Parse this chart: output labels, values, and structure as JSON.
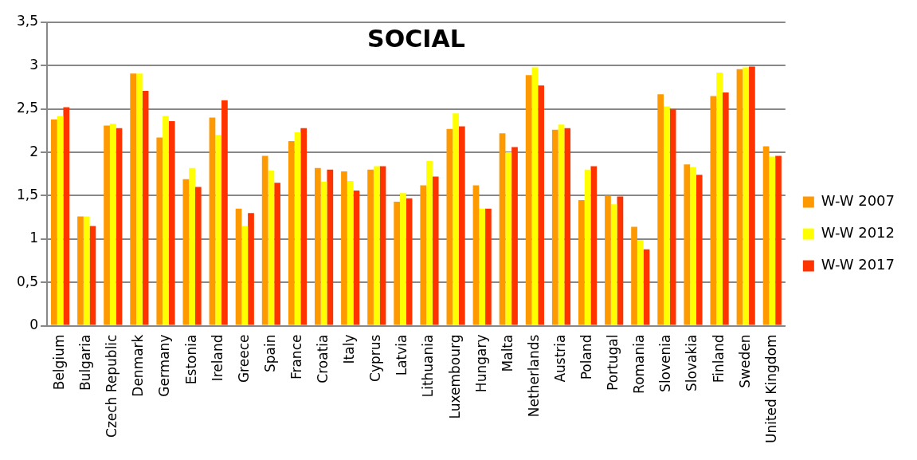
{
  "chart_data": {
    "type": "bar",
    "title": "SOCIAL",
    "categories": [
      "Belgium",
      "Bulgaria",
      "Czech Republic",
      "Denmark",
      "Germany",
      "Estonia",
      "Ireland",
      "Greece",
      "Spain",
      "France",
      "Croatia",
      "Italy",
      "Cyprus",
      "Latvia",
      "Lithuania",
      "Luxembourg",
      "Hungary",
      "Malta",
      "Netherlands",
      "Austria",
      "Poland",
      "Portugal",
      "Romania",
      "Slovenia",
      "Slovakia",
      "Finland",
      "Sweden",
      "United Kingdom"
    ],
    "series": [
      {
        "name": "W-W 2007",
        "color": "#ff9900",
        "values": [
          2.38,
          1.26,
          2.31,
          2.91,
          2.17,
          1.69,
          2.4,
          1.35,
          1.96,
          2.13,
          1.82,
          1.78,
          1.8,
          1.43,
          1.62,
          2.27,
          1.62,
          2.22,
          2.89,
          2.26,
          1.45,
          1.5,
          1.14,
          2.67,
          1.86,
          2.65,
          2.96,
          2.07
        ]
      },
      {
        "name": "W-W 2012",
        "color": "#ffff00",
        "values": [
          2.42,
          1.26,
          2.33,
          2.91,
          2.42,
          1.82,
          2.2,
          1.15,
          1.79,
          2.23,
          1.66,
          1.67,
          1.84,
          1.53,
          1.9,
          2.45,
          1.35,
          2.0,
          2.98,
          2.32,
          1.8,
          1.4,
          0.99,
          2.53,
          1.83,
          2.92,
          2.98,
          1.95
        ]
      },
      {
        "name": "W-W 2017",
        "color": "#ff3300",
        "values": [
          2.52,
          1.15,
          2.28,
          2.71,
          2.36,
          1.6,
          2.6,
          1.3,
          1.65,
          2.28,
          1.8,
          1.56,
          1.84,
          1.47,
          1.72,
          2.3,
          1.35,
          2.06,
          2.77,
          2.28,
          1.84,
          1.49,
          0.88,
          2.5,
          1.74,
          2.69,
          2.99,
          1.96
        ]
      }
    ],
    "ylim": [
      0,
      3.5
    ],
    "yticks": [
      0,
      {
        "value": 0.5,
        "label": "0,5"
      },
      1,
      {
        "value": 1.5,
        "label": "1,5"
      },
      2,
      {
        "value": 2.5,
        "label": "2,5"
      },
      3,
      {
        "value": 3.5,
        "label": "3,5"
      }
    ],
    "grid": "y",
    "legend": "right"
  }
}
